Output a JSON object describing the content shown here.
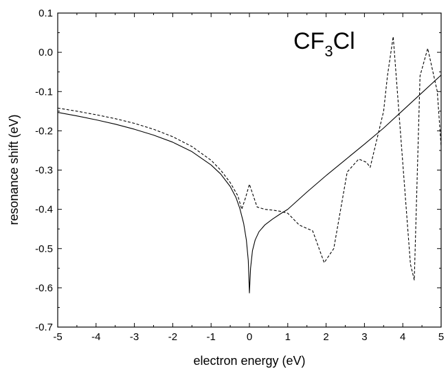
{
  "chart_data": {
    "type": "line",
    "title": "",
    "xlabel": "electron energy (eV)",
    "ylabel": "resonance shift (eV)",
    "xlim": [
      -5,
      5
    ],
    "ylim": [
      -0.7,
      0.1
    ],
    "xticks": [
      -5,
      -4,
      -3,
      -2,
      -1,
      0,
      1,
      2,
      3,
      4,
      5
    ],
    "yticks": [
      -0.7,
      -0.6,
      -0.5,
      -0.4,
      -0.3,
      -0.2,
      -0.1,
      0.0,
      0.1
    ],
    "xtick_labels": [
      "-5",
      "-4",
      "-3",
      "-2",
      "-1",
      "0",
      "1",
      "2",
      "3",
      "4",
      "5"
    ],
    "ytick_labels": [
      "-0.7",
      "-0.6",
      "-0.5",
      "-0.4",
      "-0.3",
      "-0.2",
      "-0.1",
      "0.0",
      "0.1"
    ],
    "annotation": {
      "main": "CF",
      "sub1": "3",
      "tail": "Cl"
    },
    "grid": false,
    "legend": "none",
    "series": [
      {
        "style": "solid",
        "color": "#000000",
        "x": [
          -5,
          -4.5,
          -4,
          -3.5,
          -3,
          -2.5,
          -2,
          -1.5,
          -1,
          -0.75,
          -0.5,
          -0.35,
          -0.25,
          -0.15,
          -0.08,
          -0.03,
          0,
          0.03,
          0.08,
          0.15,
          0.25,
          0.4,
          0.6,
          0.8,
          1.0,
          1.5,
          2,
          2.5,
          3,
          3.5,
          4,
          4.5,
          5
        ],
        "y": [
          -0.153,
          -0.162,
          -0.172,
          -0.183,
          -0.196,
          -0.211,
          -0.229,
          -0.253,
          -0.287,
          -0.31,
          -0.342,
          -0.37,
          -0.398,
          -0.436,
          -0.478,
          -0.53,
          -0.613,
          -0.55,
          -0.505,
          -0.478,
          -0.457,
          -0.44,
          -0.425,
          -0.412,
          -0.4,
          -0.356,
          -0.314,
          -0.274,
          -0.234,
          -0.193,
          -0.148,
          -0.103,
          -0.058
        ]
      },
      {
        "style": "dashed",
        "color": "#000000",
        "x": [
          -5,
          -4.5,
          -4,
          -3.5,
          -3,
          -2.5,
          -2,
          -1.5,
          -1,
          -0.75,
          -0.5,
          -0.3,
          -0.2,
          -0.1,
          0,
          0.2,
          0.4,
          0.6,
          0.8,
          1.0,
          1.1,
          1.3,
          1.65,
          1.95,
          2.2,
          2.55,
          2.85,
          3.05,
          3.15,
          3.5,
          3.6,
          3.75,
          4.2,
          4.3,
          4.45,
          4.65,
          4.9,
          5.0
        ],
        "y": [
          -0.142,
          -0.15,
          -0.159,
          -0.169,
          -0.181,
          -0.196,
          -0.215,
          -0.24,
          -0.275,
          -0.3,
          -0.332,
          -0.366,
          -0.4,
          -0.37,
          -0.336,
          -0.394,
          -0.4,
          -0.402,
          -0.405,
          -0.41,
          -0.42,
          -0.44,
          -0.455,
          -0.536,
          -0.5,
          -0.305,
          -0.272,
          -0.28,
          -0.293,
          -0.15,
          -0.06,
          0.04,
          -0.54,
          -0.58,
          -0.06,
          0.01,
          -0.1,
          -0.24
        ]
      }
    ]
  }
}
